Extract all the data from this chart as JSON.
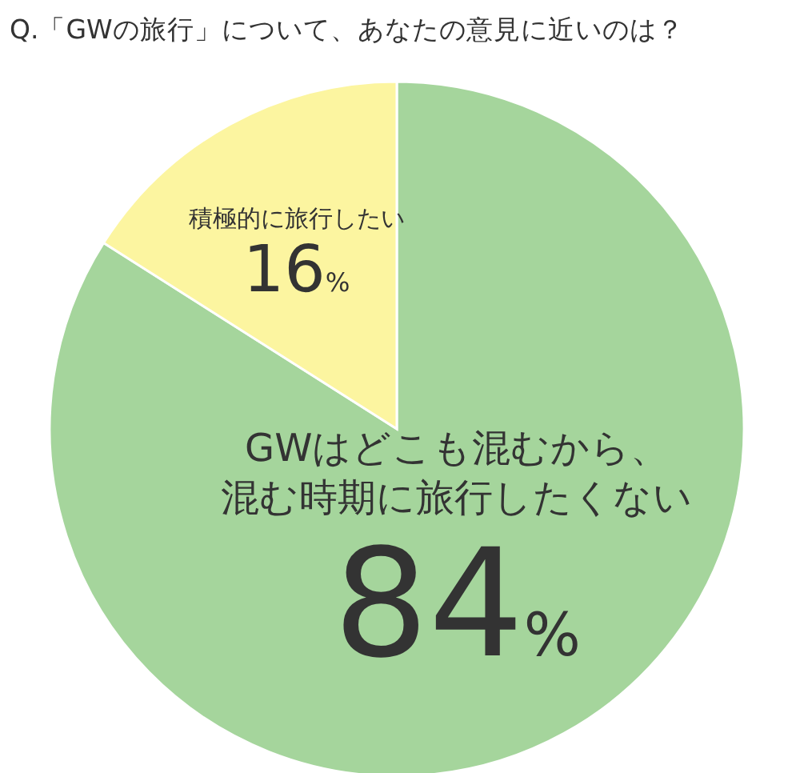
{
  "chart_data": {
    "type": "pie",
    "title": "Q.「GWの旅行」について、あなたの意見に近いのは？",
    "categories": [
      "GWはどこも混むから、混む時期に旅行したくない",
      "積極的に旅行したい"
    ],
    "values": [
      84,
      16
    ],
    "colors": [
      "#a5d59c",
      "#fcf5a0"
    ],
    "value_labels": [
      "84%",
      "16%"
    ]
  }
}
